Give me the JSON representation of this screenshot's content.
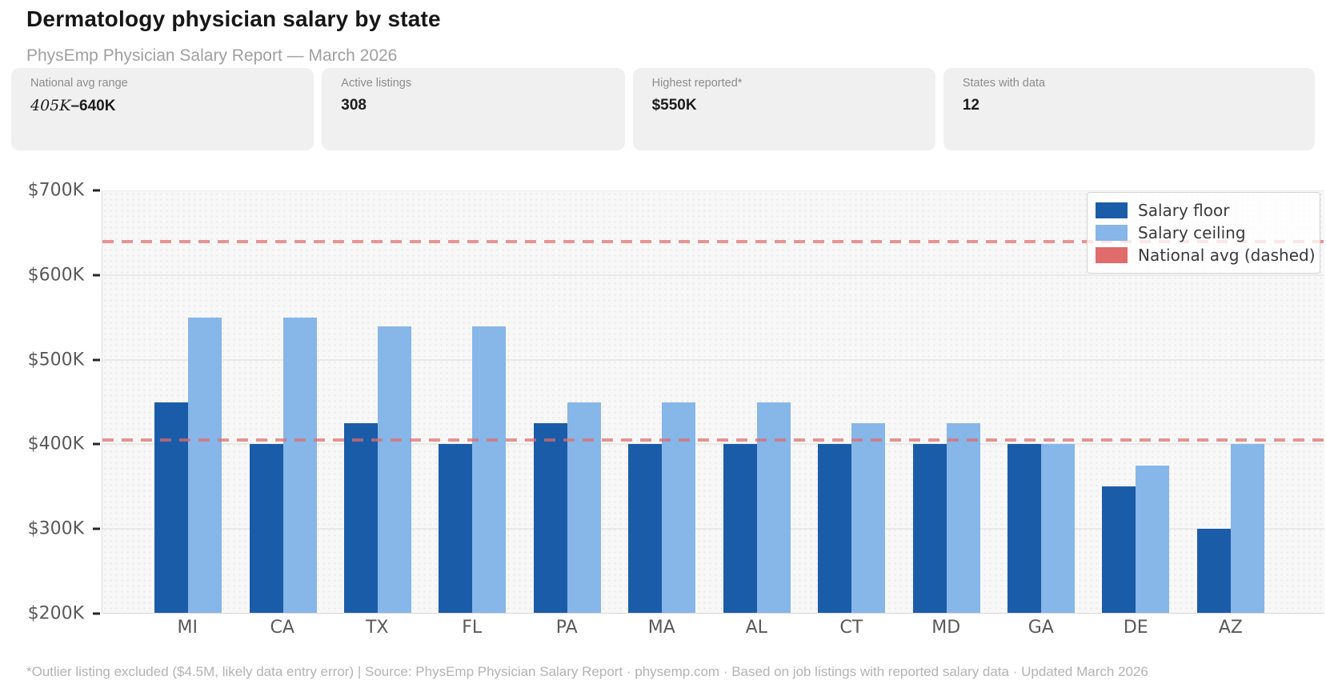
{
  "header": {
    "title": "Dermatology physician salary by state",
    "subtitle": "PhysEmp Physician Salary Report — March 2026"
  },
  "stats": [
    {
      "label": "National avg range",
      "value": "405K–640K",
      "value_start": "405K",
      "value_end": "–640K"
    },
    {
      "label": "Active listings",
      "value": "308"
    },
    {
      "label": "Highest reported*",
      "value": "$550K"
    },
    {
      "label": "States with data",
      "value": "12"
    }
  ],
  "chart_data": {
    "type": "bar",
    "title": "Dermatology physician salary by state",
    "unit": "thousand USD per year",
    "categories": [
      "MI",
      "CA",
      "TX",
      "FL",
      "PA",
      "MA",
      "AL",
      "CT",
      "MD",
      "GA",
      "DE",
      "AZ"
    ],
    "series": [
      {
        "name": "Salary floor",
        "color": "#1b5ca8",
        "values": [
          450,
          400,
          425,
          400,
          425,
          400,
          400,
          400,
          400,
          400,
          350,
          300
        ]
      },
      {
        "name": "Salary ceiling",
        "color": "#87b6e8",
        "values": [
          550,
          550,
          540,
          540,
          450,
          450,
          450,
          425,
          425,
          400,
          375,
          400
        ]
      }
    ],
    "reference_lines": [
      {
        "label": "National avg (dashed)",
        "color": "#e06c6c",
        "values": [
          405,
          640
        ]
      }
    ],
    "ylim": [
      200,
      700
    ],
    "yticks": [
      {
        "value": 200,
        "label": "$200K"
      },
      {
        "value": 300,
        "label": "$300K"
      },
      {
        "value": 400,
        "label": "$400K"
      },
      {
        "value": 500,
        "label": "$500K"
      },
      {
        "value": 600,
        "label": "$600K"
      },
      {
        "value": 700,
        "label": "$700K"
      }
    ],
    "grid": true,
    "legend_position": "upper right",
    "legend": [
      {
        "label": "Salary floor",
        "color": "#1b5ca8"
      },
      {
        "label": "Salary ceiling",
        "color": "#87b6e8"
      },
      {
        "label": "National avg (dashed)",
        "color": "#e06c6c"
      }
    ]
  },
  "footer": {
    "text": "*Outlier listing excluded ($4.5M, likely data entry error) | Source: PhysEmp Physician Salary Report · physemp.com · Based on job listings with reported salary data · Updated March 2026"
  }
}
